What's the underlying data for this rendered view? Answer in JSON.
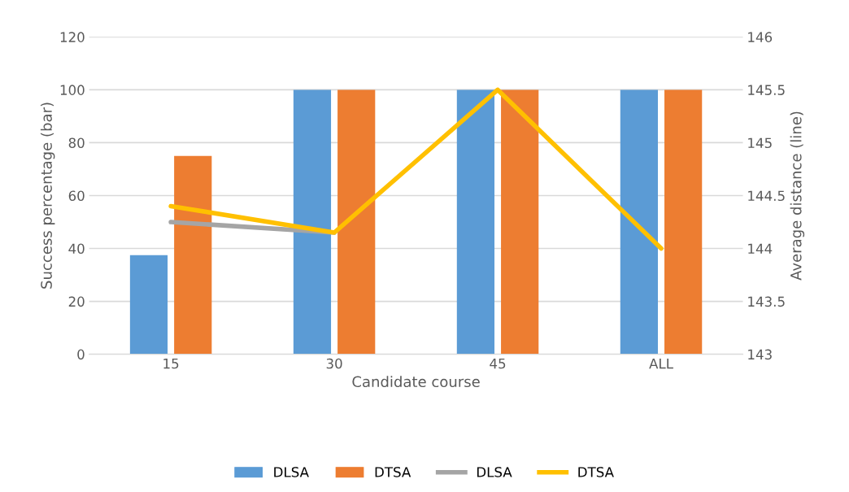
{
  "chart_data": {
    "type": "bar",
    "xlabel": "Candidate course",
    "ylabel": "Success percentage (bar)",
    "y2label": "Average distance (line)",
    "categories": [
      "15",
      "30",
      "45",
      "ALL"
    ],
    "series": [
      {
        "name": "DLSA",
        "color": "#5b9bd5",
        "values": [
          37.5,
          100,
          100,
          100
        ]
      },
      {
        "name": "DTSA",
        "color": "#ed7d31",
        "values": [
          75,
          100,
          100,
          100
        ]
      },
      {
        "name": "DLSA",
        "type": "line",
        "axis": "y2",
        "color": "#a5a5a5",
        "values": [
          144.25,
          144.15,
          null,
          null
        ]
      },
      {
        "name": "DTSA",
        "type": "line",
        "axis": "y2",
        "color": "#ffc000",
        "values": [
          144.4,
          144.15,
          145.5,
          144.0
        ]
      }
    ],
    "ylim": [
      0,
      120
    ],
    "yticks": [
      0,
      20,
      40,
      60,
      80,
      100,
      120
    ],
    "y2lim": [
      143,
      146
    ],
    "y2ticks": [
      143,
      143.5,
      144,
      144.5,
      145,
      145.5,
      146
    ],
    "grid": "y",
    "legend": "bottom"
  }
}
